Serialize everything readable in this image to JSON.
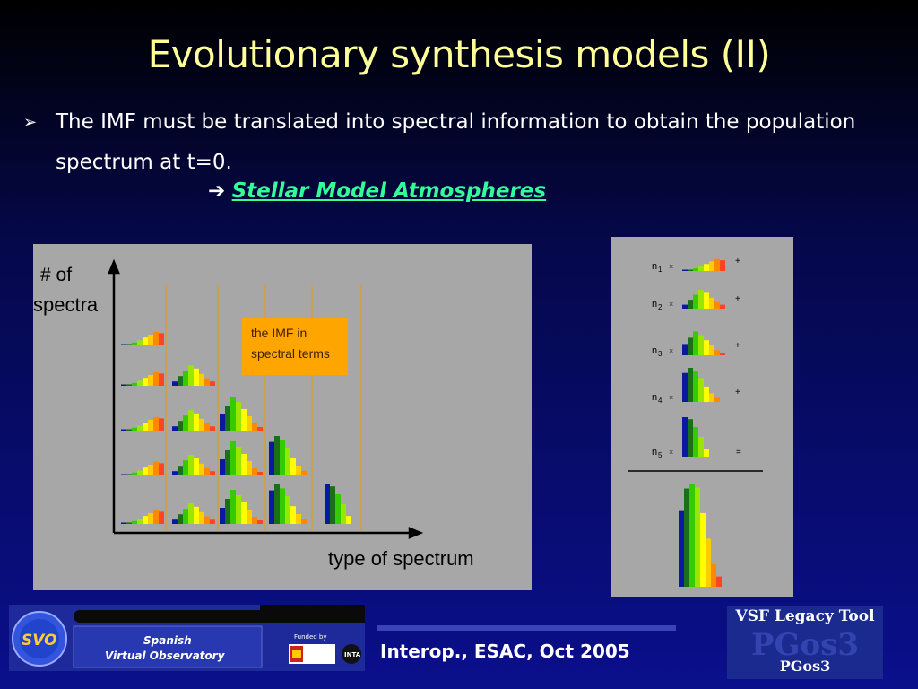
{
  "slide": {
    "title": "Evolutionary synthesis models (II)",
    "bullet_marker": "➢",
    "bullet_text": "The IMF must be translated into spectral information to obtain the population spectrum at t=0.",
    "arrow": "➔",
    "link_text": "Stellar Model Atmospheres"
  },
  "left_figure": {
    "y_label_line1": "# of",
    "y_label_line2": "spectra",
    "x_label": "type of spectrum",
    "imf_box_line1": "the IMF in",
    "imf_box_line2": "spectral terms"
  },
  "right_figure": {
    "rows": [
      {
        "n": "n",
        "sub": "1",
        "x": "×",
        "op": "+"
      },
      {
        "n": "n",
        "sub": "2",
        "x": "×",
        "op": "+"
      },
      {
        "n": "n",
        "sub": "3",
        "x": "×",
        "op": "+"
      },
      {
        "n": "n",
        "sub": "4",
        "x": "×",
        "op": "+"
      },
      {
        "n": "n",
        "sub": "5",
        "x": "×",
        "op": "="
      }
    ]
  },
  "footer": {
    "event": "Interop., ESAC, Oct 2005",
    "svo_logo_text": "SVO",
    "svo_name_line1": "Spanish",
    "svo_name_line2": "Virtual Observatory",
    "funded_by": "Funded by",
    "inta": "INTA",
    "vsf_title": "VSF Legacy Tool",
    "vsf_sub": "PGos3"
  },
  "colors": {
    "title": "#ffff99",
    "link": "#33ff99",
    "panel": "#a7a7a7",
    "imf_box": "#ffa500",
    "spectrum": [
      "#0a1aa0",
      "#1a6f1a",
      "#33cc00",
      "#99e600",
      "#ffff00",
      "#ffcc00",
      "#ff8800",
      "#ff4422"
    ]
  },
  "icons": [
    "arrow-right-icon",
    "bullet-arrow-icon"
  ]
}
